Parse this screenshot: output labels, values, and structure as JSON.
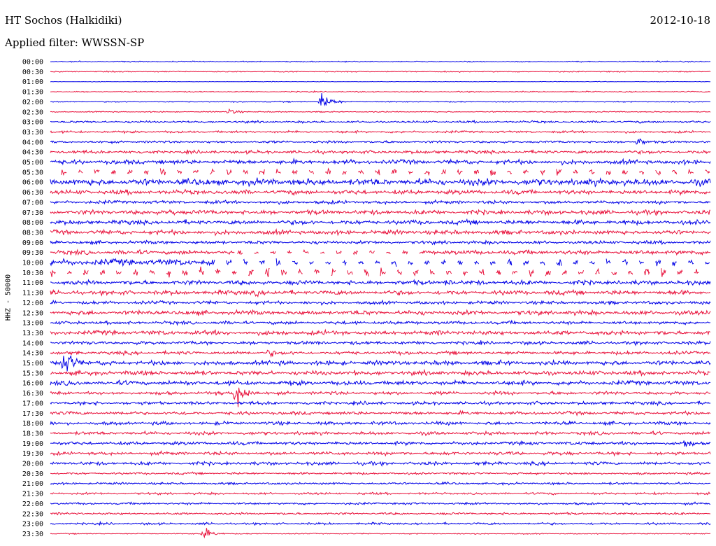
{
  "header": {
    "station": "HT Sochos (Halkidiki)",
    "date": "2012-10-18",
    "filter": "Applied filter: WWSSN-SP"
  },
  "chart_data": {
    "type": "line",
    "ylabel": "HHZ - 50000",
    "row_labels": [
      "00:00",
      "00:30",
      "01:00",
      "01:30",
      "02:00",
      "02:30",
      "03:00",
      "03:30",
      "04:00",
      "04:30",
      "05:00",
      "05:30",
      "06:00",
      "06:30",
      "07:00",
      "07:30",
      "08:00",
      "08:30",
      "09:00",
      "09:30",
      "10:00",
      "10:30",
      "11:00",
      "11:30",
      "12:00",
      "12:30",
      "13:00",
      "13:30",
      "14:00",
      "14:30",
      "15:00",
      "15:30",
      "16:00",
      "16:30",
      "17:00",
      "17:30",
      "18:00",
      "18:30",
      "19:00",
      "19:30",
      "20:00",
      "20:30",
      "21:00",
      "21:30",
      "22:00",
      "22:30",
      "23:00",
      "23:30"
    ],
    "trace_colors": [
      "#0000e6",
      "#e8123c"
    ],
    "color_pattern": "alternating blue/red by row",
    "row_noise_amplitude": [
      1,
      1,
      0.5,
      1,
      1,
      1,
      2,
      2,
      2,
      3,
      4,
      6,
      6,
      4,
      3,
      4,
      4,
      4,
      3,
      4,
      6,
      8,
      4,
      4,
      3,
      4,
      3,
      4,
      3,
      3,
      4,
      4,
      4,
      3,
      3,
      3,
      3,
      3,
      3,
      3,
      3,
      2,
      2,
      2,
      2,
      2,
      2,
      1
    ],
    "events": [
      {
        "row": "00:00",
        "x_frac": 0.92,
        "amplitude": 4
      },
      {
        "row": "02:00",
        "x_frac": 0.41,
        "amplitude": 24
      },
      {
        "row": "02:30",
        "x_frac": 0.27,
        "amplitude": 8
      },
      {
        "row": "04:00",
        "x_frac": 0.89,
        "amplitude": 12
      },
      {
        "row": "06:00",
        "x_frac": 0.81,
        "amplitude": 10
      },
      {
        "row": "06:00",
        "x_frac": 0.87,
        "amplitude": 10
      },
      {
        "row": "07:30",
        "x_frac": 0.18,
        "amplitude": 10
      },
      {
        "row": "11:00",
        "x_frac": 0.6,
        "amplitude": 10
      },
      {
        "row": "11:30",
        "x_frac": 0.31,
        "amplitude": 10
      },
      {
        "row": "11:30",
        "x_frac": 0.7,
        "amplitude": 8
      },
      {
        "row": "14:30",
        "x_frac": 0.33,
        "amplitude": 12
      },
      {
        "row": "15:00",
        "x_frac": 0.02,
        "amplitude": 40
      },
      {
        "row": "15:30",
        "x_frac": 0.46,
        "amplitude": 10
      },
      {
        "row": "16:30",
        "x_frac": 0.28,
        "amplitude": 42
      },
      {
        "row": "17:00",
        "x_frac": 0.49,
        "amplitude": 6
      },
      {
        "row": "19:00",
        "x_frac": 0.96,
        "amplitude": 14
      },
      {
        "row": "23:30",
        "x_frac": 0.23,
        "amplitude": 16
      }
    ],
    "data_gaps": [
      {
        "row": "05:30",
        "x_from": 0.0,
        "x_to": 1.0,
        "style": "intermittent"
      },
      {
        "row": "09:30",
        "x_from": 0.28,
        "x_to": 0.56,
        "style": "intermittent"
      },
      {
        "row": "10:00",
        "x_from": 0.25,
        "x_to": 1.0,
        "style": "intermittent"
      },
      {
        "row": "10:30",
        "x_from": 0.0,
        "x_to": 1.0,
        "style": "intermittent"
      }
    ]
  }
}
